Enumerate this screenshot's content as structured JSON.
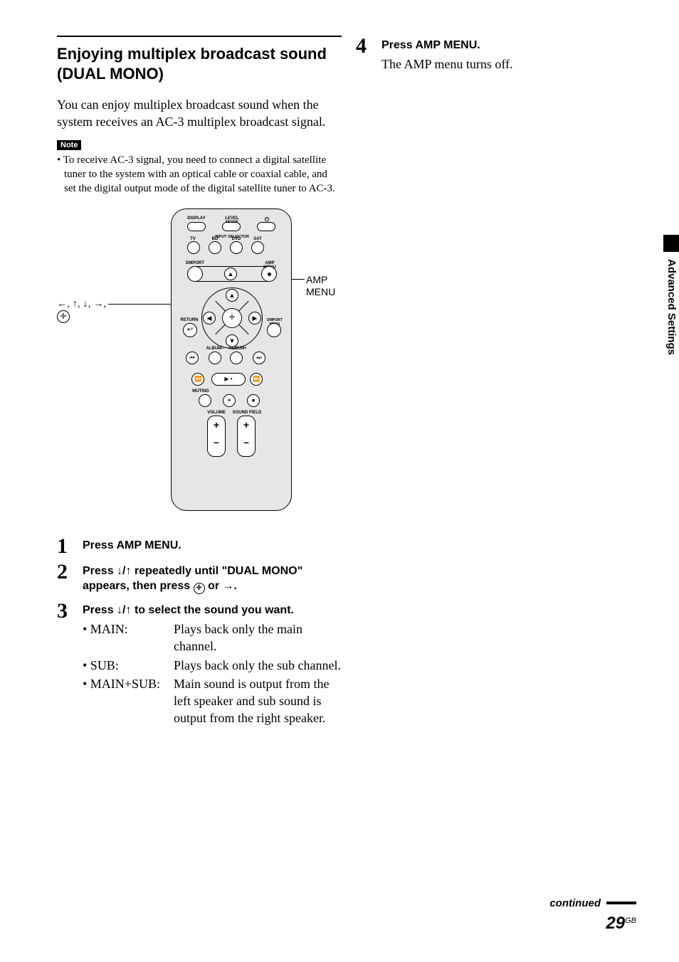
{
  "section": {
    "heading": "Enjoying multiplex broadcast sound (DUAL MONO)",
    "intro": "You can enjoy multiplex broadcast sound when the system receives an AC-3 multiplex broadcast signal.",
    "note_label": "Note",
    "note_body": "• To receive AC-3 signal, you need to connect a digital satellite tuner to the system with an optical cable or coaxial cable, and set the digital output mode of the digital satellite tuner to AC-3."
  },
  "remote": {
    "callout_left_arrows": "←, ↑, ↓, →,",
    "callout_right": "AMP MENU",
    "labels": {
      "display": "DISPLAY",
      "level_mode": "LEVEL MODE",
      "power": "⏻",
      "input_selector": "INPUT SELECTOR",
      "tv": "TV",
      "bd": "BD",
      "dvd": "DVD",
      "sat": "SAT",
      "dmport": "DMPORT",
      "amp_menu": "AMP MENU",
      "return": "RETURN",
      "dmport_menu": "DMPORT MENU",
      "album_minus": "ALBUM–",
      "album_plus": "ALBUM+",
      "muting": "MUTING",
      "volume": "VOLUME",
      "sound_field": "SOUND FIELD"
    },
    "symbols": {
      "up": "▲",
      "down": "▼",
      "left": "◀",
      "right": "▶",
      "enter": "✛",
      "ret": "↩",
      "prev": "⏮",
      "next": "⏭",
      "rew": "⏪",
      "play": "▶ •",
      "ffwd": "⏩",
      "pause": "⏸",
      "stop": "⏹",
      "plus": "+",
      "minus": "–",
      "dot": "●"
    }
  },
  "steps": [
    {
      "num": "1",
      "head": "Press AMP MENU."
    },
    {
      "num": "2",
      "head_a": "Press ",
      "head_arrows": "↓/↑",
      "head_b": " repeatedly until \"DUAL MONO\" appears, then press ",
      "head_c": " or ",
      "head_arrow_r": "→",
      "head_d": "."
    },
    {
      "num": "3",
      "head_a": "Press ",
      "head_arrows": "↓/↑",
      "head_b": " to select the sound you want.",
      "options": [
        {
          "key": "• MAIN:",
          "desc": "Plays back only the main channel."
        },
        {
          "key": "• SUB:",
          "desc": "Plays back only the sub channel."
        },
        {
          "key": "• MAIN+SUB:",
          "desc": "Main sound is output from the left speaker and sub sound is output from the right speaker."
        }
      ]
    }
  ],
  "right": {
    "step4_num": "4",
    "step4_head": "Press AMP MENU.",
    "step4_sub": "The AMP menu turns off."
  },
  "side_tab": "Advanced Settings",
  "footer": {
    "continued": "continued",
    "page_big": "29",
    "page_sup": "GB"
  }
}
